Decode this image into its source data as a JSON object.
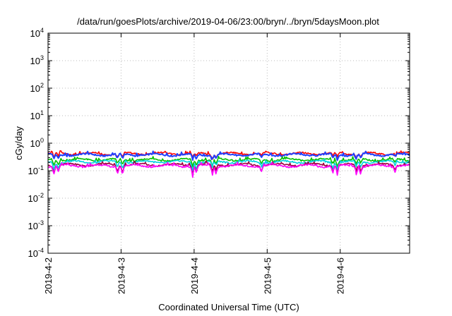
{
  "chart_data": {
    "type": "line",
    "title": "/data/run/goesPlots/archive/2019-04-06/23:00/bryn/../bryn/5daysMoon.plot",
    "xlabel": "Coordinated Universal Time (UTC)",
    "ylabel": "cGy/day",
    "yscale": "log",
    "ylim": [
      0.0001,
      10000
    ],
    "y_ticks": [
      {
        "value": 0.0001,
        "base": "10",
        "exp": "-4"
      },
      {
        "value": 0.001,
        "base": "10",
        "exp": "-3"
      },
      {
        "value": 0.01,
        "base": "10",
        "exp": "-2"
      },
      {
        "value": 0.1,
        "base": "10",
        "exp": "-1"
      },
      {
        "value": 1,
        "base": "10",
        "exp": "0"
      },
      {
        "value": 10,
        "base": "10",
        "exp": "1"
      },
      {
        "value": 100,
        "base": "10",
        "exp": "2"
      },
      {
        "value": 1000,
        "base": "10",
        "exp": "3"
      },
      {
        "value": 10000,
        "base": "10",
        "exp": "4"
      }
    ],
    "xlim_days": [
      0,
      4.95
    ],
    "x_ticks": [
      {
        "day": 0,
        "label": "2019-4-2"
      },
      {
        "day": 1,
        "label": "2019-4-3"
      },
      {
        "day": 2,
        "label": "2019-4-4"
      },
      {
        "day": 3,
        "label": "2019-4-5"
      },
      {
        "day": 4,
        "label": "2019-4-6"
      }
    ],
    "grid": true,
    "legend": "none",
    "series_note": "approximate baseline dose rate per series; dips are transient drops (e.g. near 2019-4-2 02:00, 2019-4-4 00:00, 2019-4-6 00:00)",
    "series": [
      {
        "name": "red",
        "color": "#ff0000",
        "baseline": 0.42
      },
      {
        "name": "blue",
        "color": "#2040ff",
        "baseline": 0.38
      },
      {
        "name": "green",
        "color": "#00c000",
        "baseline": 0.25
      },
      {
        "name": "cyan",
        "color": "#00d0e0",
        "baseline": 0.21
      },
      {
        "name": "maroon",
        "color": "#a00040",
        "baseline": 0.165
      },
      {
        "name": "magenta",
        "color": "#ff00ff",
        "baseline": 0.15
      }
    ],
    "dips": [
      {
        "day": 0.08,
        "factor": 0.45
      },
      {
        "day": 0.14,
        "factor": 0.55
      },
      {
        "day": 0.95,
        "factor": 0.55
      },
      {
        "day": 1.02,
        "factor": 0.5
      },
      {
        "day": 1.98,
        "factor": 0.4
      },
      {
        "day": 2.03,
        "factor": 0.5
      },
      {
        "day": 2.25,
        "factor": 0.45
      },
      {
        "day": 2.3,
        "factor": 0.55
      },
      {
        "day": 2.92,
        "factor": 0.6
      },
      {
        "day": 3.9,
        "factor": 0.55
      },
      {
        "day": 3.96,
        "factor": 0.45
      },
      {
        "day": 4.22,
        "factor": 0.5
      },
      {
        "day": 4.28,
        "factor": 0.55
      },
      {
        "day": 4.75,
        "factor": 0.65
      }
    ]
  }
}
